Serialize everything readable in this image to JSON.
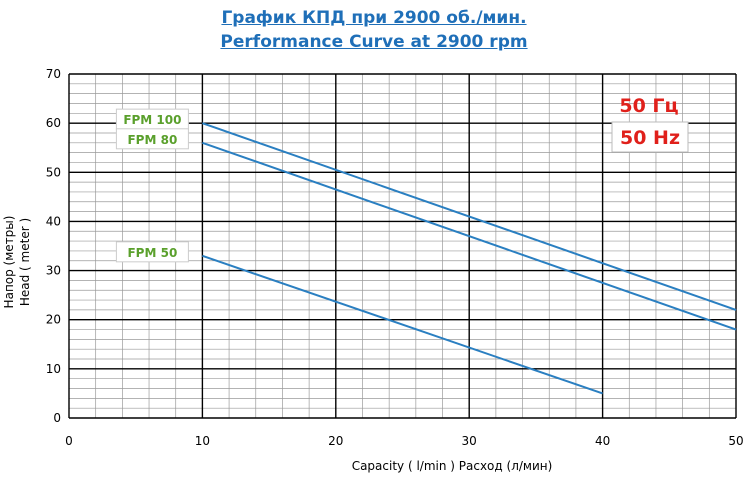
{
  "header": {
    "title_ru": "График КПД при 2900 об./мин.",
    "title_en": "Performance Curve at 2900 rpm"
  },
  "annotations": {
    "freq_ru": "50 Гц",
    "freq_en": "50 Hz"
  },
  "colors": {
    "title": "#1f6fb8",
    "series_line": "#2a7fc1",
    "series_label": "#5aa02c",
    "freq_label": "#e0201b",
    "grid": "#000000"
  },
  "chart_data": {
    "type": "line",
    "xlabel": "Capacity  ( l/min )  Расход (л/мин)",
    "ylabel_ru": "Напор (метры)",
    "ylabel_en": "Head  ( meter )",
    "xlim": [
      0,
      50
    ],
    "ylim": [
      0,
      70
    ],
    "x_ticks": [
      0,
      10,
      20,
      30,
      40,
      50
    ],
    "y_ticks": [
      0,
      10,
      20,
      30,
      40,
      50,
      60,
      70
    ],
    "grid": true,
    "series": [
      {
        "name": "FPM 100",
        "x": [
          10,
          50
        ],
        "y": [
          60,
          22
        ]
      },
      {
        "name": "FPM 80",
        "x": [
          10,
          50
        ],
        "y": [
          56,
          18
        ]
      },
      {
        "name": "FPM 50",
        "x": [
          10,
          40
        ],
        "y": [
          33,
          5
        ]
      }
    ]
  }
}
